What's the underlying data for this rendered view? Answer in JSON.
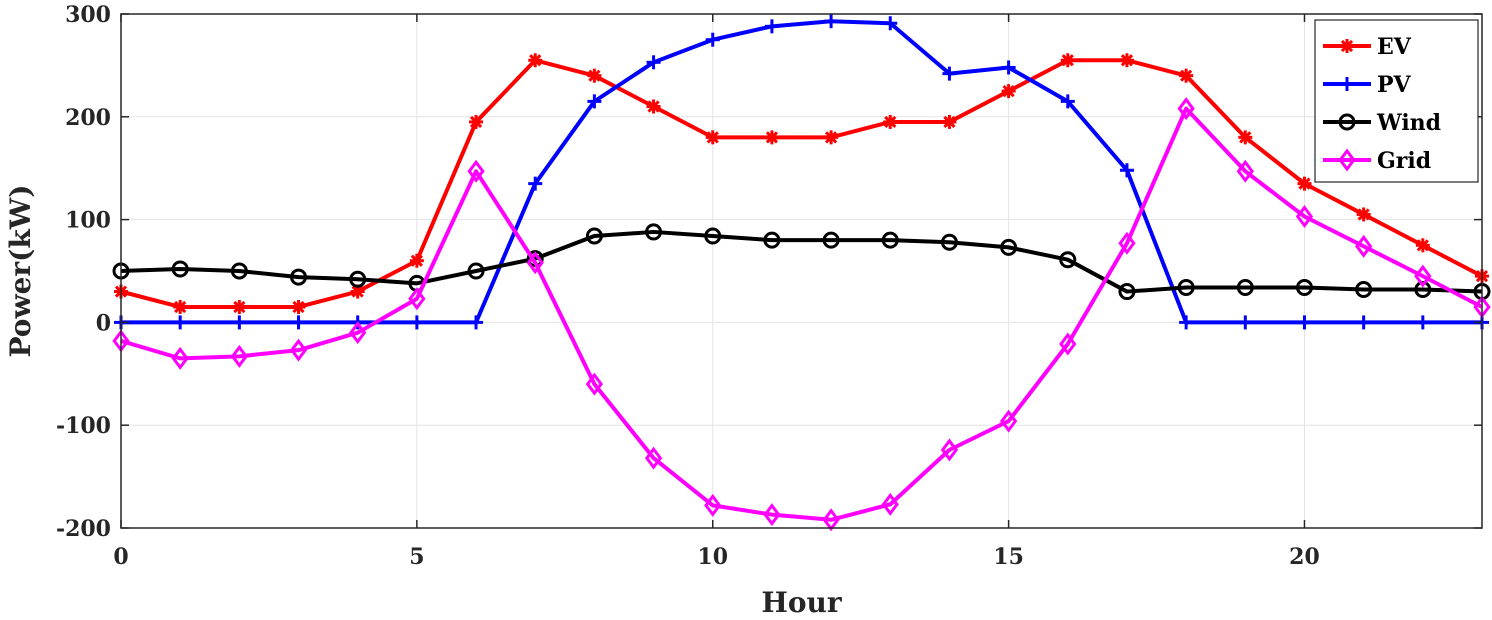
{
  "chart_data": {
    "type": "line",
    "xlabel": "Hour",
    "ylabel": "Power(kW)",
    "xlim": [
      0,
      23
    ],
    "ylim": [
      -200,
      300
    ],
    "xticks": [
      0,
      5,
      10,
      15,
      20
    ],
    "yticks": [
      -200,
      -100,
      0,
      100,
      200,
      300
    ],
    "grid": true,
    "legend_position": "top-right",
    "x": [
      0,
      1,
      2,
      3,
      4,
      5,
      6,
      7,
      8,
      9,
      10,
      11,
      12,
      13,
      14,
      15,
      16,
      17,
      18,
      19,
      20,
      21,
      22,
      23
    ],
    "series": [
      {
        "name": "EV",
        "color": "#ff0000",
        "marker": "asterisk",
        "values": [
          30,
          15,
          15,
          15,
          30,
          60,
          195,
          255,
          240,
          210,
          180,
          180,
          180,
          195,
          195,
          225,
          255,
          255,
          240,
          180,
          135,
          105,
          75,
          45
        ]
      },
      {
        "name": "PV",
        "color": "#0000ff",
        "marker": "plus",
        "values": [
          0,
          0,
          0,
          0,
          0,
          0,
          0,
          135,
          215,
          253,
          275,
          288,
          293,
          291,
          242,
          248,
          215,
          148,
          0,
          0,
          0,
          0,
          0,
          0
        ]
      },
      {
        "name": "Wind",
        "color": "#000000",
        "marker": "circle",
        "values": [
          50,
          52,
          50,
          44,
          42,
          38,
          50,
          62,
          84,
          88,
          84,
          80,
          80,
          80,
          78,
          73,
          61,
          30,
          34,
          34,
          34,
          32,
          32,
          30
        ]
      },
      {
        "name": "Grid",
        "color": "#ff00ff",
        "marker": "diamond",
        "values": [
          -18,
          -35,
          -33,
          -27,
          -10,
          23,
          147,
          58,
          -60,
          -132,
          -178,
          -187,
          -192,
          -177,
          -124,
          -96,
          -21,
          77,
          208,
          147,
          103,
          74,
          45,
          15
        ]
      }
    ]
  }
}
